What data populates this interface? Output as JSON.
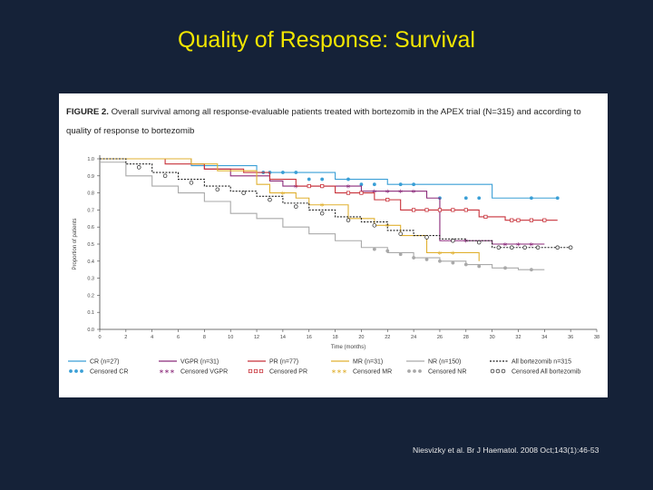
{
  "slide": {
    "title": "Quality of Response: Survival",
    "citation": "Niesvizky et al. Br J Haematol. 2008 Oct;143(1):46-53"
  },
  "figure": {
    "caption_label": "FIGURE 2.",
    "caption_text": "Overall survival among all response-evaluable patients treated with bortezomib in the APEX trial (N=315) and according to quality of response to bortezomib"
  },
  "chart_data": {
    "type": "line",
    "title": "Overall survival among all response-evaluable patients treated with bortezomib in the APEX trial (N=315) and according to quality of response to bortezomib",
    "xlabel": "Time (months)",
    "ylabel": "Proportion of patients",
    "xlim": [
      0,
      38
    ],
    "ylim": [
      0,
      1.0
    ],
    "xticks": [
      "0",
      "2",
      "4",
      "6",
      "8",
      "10",
      "12",
      "14",
      "16",
      "18",
      "20",
      "22",
      "24",
      "26",
      "28",
      "30",
      "32",
      "34",
      "36",
      "38"
    ],
    "yticks": [
      "0.0",
      "0.1",
      "0.2",
      "0.3",
      "0.4",
      "0.5",
      "0.6",
      "0.7",
      "0.8",
      "0.9",
      "1.0"
    ],
    "series": [
      {
        "name": "CR (n=27)",
        "censored_label": "Censored CR",
        "color": "#3a9fd6",
        "marker": "dot",
        "x": [
          0,
          6,
          7,
          12,
          18,
          22,
          30,
          35
        ],
        "y": [
          1.0,
          1.0,
          0.96,
          0.92,
          0.88,
          0.85,
          0.77,
          0.77
        ],
        "censor_x": [
          12.5,
          13,
          14,
          15,
          16,
          17,
          19,
          20,
          21,
          23,
          24,
          26,
          28,
          29,
          33,
          35
        ],
        "censor_y": [
          0.92,
          0.92,
          0.92,
          0.92,
          0.88,
          0.88,
          0.88,
          0.85,
          0.85,
          0.85,
          0.85,
          0.77,
          0.77,
          0.77,
          0.77,
          0.77
        ]
      },
      {
        "name": "VGPR (n=31)",
        "censored_label": "Censored VGPR",
        "color": "#8b2a7a",
        "marker": "star",
        "x": [
          0,
          7,
          8,
          10,
          13,
          14,
          20,
          25,
          26,
          30,
          34
        ],
        "y": [
          1.0,
          0.97,
          0.94,
          0.9,
          0.87,
          0.84,
          0.81,
          0.77,
          0.52,
          0.5,
          0.5
        ],
        "censor_x": [
          15,
          17,
          19,
          21,
          22,
          23,
          24,
          27,
          28,
          31,
          32,
          33
        ],
        "censor_y": [
          0.84,
          0.84,
          0.84,
          0.81,
          0.81,
          0.81,
          0.81,
          0.52,
          0.52,
          0.5,
          0.5,
          0.5
        ]
      },
      {
        "name": "PR (n=77)",
        "censored_label": "Censored PR",
        "color": "#c8323a",
        "marker": "square",
        "x": [
          0,
          5,
          8,
          11,
          13,
          15,
          18,
          21,
          23,
          29,
          31,
          35
        ],
        "y": [
          1.0,
          0.97,
          0.94,
          0.92,
          0.88,
          0.84,
          0.8,
          0.76,
          0.7,
          0.66,
          0.64,
          0.64
        ],
        "censor_x": [
          16,
          17,
          19,
          20,
          22,
          24,
          25,
          26,
          27,
          28,
          29.5,
          31.5,
          32,
          33,
          34
        ],
        "censor_y": [
          0.84,
          0.84,
          0.8,
          0.8,
          0.76,
          0.7,
          0.7,
          0.7,
          0.7,
          0.7,
          0.66,
          0.64,
          0.64,
          0.64,
          0.64
        ]
      },
      {
        "name": "MR (n=31)",
        "censored_label": "Censored MR",
        "color": "#e0b030",
        "marker": "star",
        "x": [
          0,
          7,
          9,
          12,
          13,
          15,
          16,
          19,
          21,
          23,
          25,
          29
        ],
        "y": [
          1.0,
          0.97,
          0.93,
          0.85,
          0.8,
          0.77,
          0.73,
          0.65,
          0.61,
          0.55,
          0.45,
          0.4
        ],
        "censor_x": [
          14,
          17,
          22,
          26,
          27
        ],
        "censor_y": [
          0.8,
          0.73,
          0.61,
          0.45,
          0.45
        ]
      },
      {
        "name": "NR (n=150)",
        "censored_label": "Censored NR",
        "color": "#a9a9a9",
        "marker": "dot",
        "x": [
          0,
          2,
          4,
          6,
          8,
          10,
          12,
          14,
          16,
          18,
          20,
          22,
          24,
          26,
          28,
          30,
          32,
          34
        ],
        "y": [
          0.98,
          0.9,
          0.84,
          0.8,
          0.75,
          0.68,
          0.65,
          0.6,
          0.56,
          0.52,
          0.48,
          0.45,
          0.42,
          0.4,
          0.38,
          0.36,
          0.35,
          0.35
        ],
        "censor_x": [
          21,
          22,
          23,
          24,
          25,
          26,
          27,
          28,
          29,
          31,
          33
        ],
        "censor_y": [
          0.47,
          0.46,
          0.44,
          0.42,
          0.41,
          0.4,
          0.39,
          0.38,
          0.37,
          0.36,
          0.35
        ]
      },
      {
        "name": "All bortezomib n=315",
        "censored_label": "Censored All bortezomib",
        "color": "#222222",
        "marker": "circle",
        "dashed": true,
        "x": [
          0,
          2,
          4,
          6,
          8,
          10,
          12,
          14,
          16,
          18,
          20,
          22,
          24,
          26,
          28,
          30,
          32,
          34,
          36
        ],
        "y": [
          1.0,
          0.97,
          0.92,
          0.88,
          0.84,
          0.81,
          0.78,
          0.74,
          0.7,
          0.66,
          0.63,
          0.58,
          0.55,
          0.53,
          0.52,
          0.48,
          0.48,
          0.48,
          0.48
        ],
        "censor_x": [
          3,
          5,
          7,
          9,
          11,
          13,
          15,
          17,
          19,
          21,
          23,
          25,
          27,
          29,
          30.5,
          31.5,
          32.5,
          33.5,
          35,
          36
        ],
        "censor_y": [
          0.95,
          0.9,
          0.86,
          0.82,
          0.8,
          0.76,
          0.72,
          0.68,
          0.64,
          0.61,
          0.56,
          0.54,
          0.52,
          0.51,
          0.48,
          0.48,
          0.48,
          0.48,
          0.48,
          0.48
        ]
      }
    ],
    "legend_placement": "bottom"
  }
}
